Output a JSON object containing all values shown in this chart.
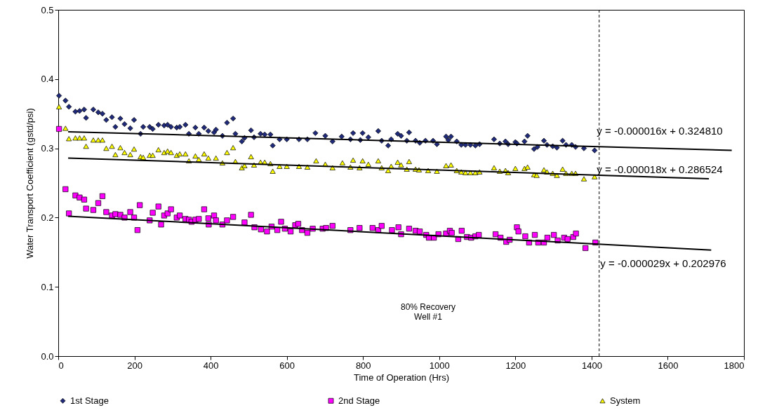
{
  "chart_data": {
    "type": "scatter",
    "xlabel": "Time of Operation (Hrs)",
    "ylabel": "Water Transport Coefficient (gstd/psi)",
    "xlim": [
      0,
      1800
    ],
    "xticks": [
      0,
      200,
      400,
      600,
      800,
      1000,
      1200,
      1400,
      1600,
      1800
    ],
    "ylim": [
      0,
      0.5
    ],
    "yticks": [
      {
        "value": 0,
        "label": "0.0"
      },
      0.1,
      0.2,
      0.3,
      0.4,
      0.5
    ],
    "grid": false,
    "legend": "bottom",
    "series": [
      {
        "name": "1st Stage",
        "marker": "diamond",
        "color": "#1f2a7a",
        "x": [
          2,
          19,
          28,
          45,
          56,
          68,
          73,
          92,
          105,
          116,
          126,
          141,
          150,
          163,
          174,
          189,
          199,
          216,
          223,
          240,
          248,
          263,
          278,
          287,
          296,
          311,
          319,
          334,
          343,
          360,
          369,
          383,
          394,
          409,
          414,
          431,
          443,
          459,
          465,
          482,
          489,
          506,
          514,
          531,
          542,
          557,
          563,
          581,
          600,
          632,
          654,
          675,
          701,
          720,
          744,
          767,
          774,
          793,
          799,
          814,
          840,
          849,
          866,
          874,
          891,
          900,
          915,
          921,
          938,
          949,
          964,
          984,
          994,
          1018,
          1024,
          1031,
          1046,
          1058,
          1069,
          1082,
          1095,
          1106,
          1144,
          1159,
          1174,
          1181,
          1200,
          1204,
          1224,
          1232,
          1249,
          1258,
          1275,
          1283,
          1298,
          1309,
          1324,
          1333,
          1348,
          1358,
          1380,
          1408
        ],
        "values": [
          0.376,
          0.369,
          0.36,
          0.353,
          0.354,
          0.356,
          0.344,
          0.356,
          0.352,
          0.35,
          0.341,
          0.345,
          0.331,
          0.343,
          0.335,
          0.329,
          0.341,
          0.321,
          0.331,
          0.331,
          0.328,
          0.334,
          0.333,
          0.334,
          0.331,
          0.33,
          0.331,
          0.334,
          0.321,
          0.33,
          0.321,
          0.33,
          0.325,
          0.323,
          0.327,
          0.318,
          0.337,
          0.343,
          0.321,
          0.31,
          0.315,
          0.326,
          0.316,
          0.321,
          0.32,
          0.32,
          0.304,
          0.313,
          0.313,
          0.313,
          0.313,
          0.322,
          0.318,
          0.31,
          0.317,
          0.313,
          0.322,
          0.312,
          0.322,
          0.316,
          0.325,
          0.311,
          0.304,
          0.313,
          0.321,
          0.318,
          0.311,
          0.323,
          0.311,
          0.308,
          0.311,
          0.311,
          0.306,
          0.317,
          0.312,
          0.317,
          0.31,
          0.305,
          0.305,
          0.305,
          0.304,
          0.306,
          0.313,
          0.307,
          0.31,
          0.306,
          0.309,
          0.307,
          0.31,
          0.318,
          0.299,
          0.302,
          0.311,
          0.305,
          0.303,
          0.301,
          0.311,
          0.305,
          0.305,
          0.302,
          0.3,
          0.297
        ]
      },
      {
        "name": "2nd Stage",
        "marker": "square",
        "color": "#ff00ff",
        "x": [
          2,
          19,
          28,
          45,
          56,
          68,
          73,
          92,
          105,
          116,
          126,
          141,
          150,
          163,
          174,
          189,
          199,
          208,
          214,
          240,
          248,
          263,
          270,
          278,
          287,
          296,
          311,
          319,
          334,
          343,
          350,
          360,
          369,
          383,
          394,
          395,
          409,
          414,
          431,
          443,
          459,
          489,
          506,
          515,
          532,
          548,
          560,
          575,
          585,
          595,
          610,
          622,
          630,
          640,
          654,
          668,
          694,
          703,
          720,
          767,
          791,
          825,
          840,
          849,
          876,
          893,
          900,
          921,
          938,
          949,
          966,
          973,
          986,
          998,
          1018,
          1028,
          1033,
          1050,
          1059,
          1073,
          1084,
          1095,
          1104,
          1148,
          1161,
          1176,
          1185,
          1204,
          1208,
          1226,
          1236,
          1251,
          1260,
          1275,
          1284,
          1301,
          1311,
          1328,
          1337,
          1352,
          1359,
          1384,
          1410
        ],
        "values": [
          0.328,
          0.241,
          0.206,
          0.232,
          0.229,
          0.226,
          0.213,
          0.211,
          0.221,
          0.231,
          0.208,
          0.203,
          0.205,
          0.204,
          0.2,
          0.208,
          0.2,
          0.182,
          0.218,
          0.196,
          0.207,
          0.216,
          0.19,
          0.203,
          0.206,
          0.212,
          0.2,
          0.203,
          0.198,
          0.197,
          0.194,
          0.197,
          0.198,
          0.212,
          0.199,
          0.19,
          0.203,
          0.196,
          0.19,
          0.196,
          0.201,
          0.193,
          0.204,
          0.186,
          0.183,
          0.18,
          0.187,
          0.182,
          0.194,
          0.184,
          0.18,
          0.189,
          0.191,
          0.182,
          0.178,
          0.184,
          0.184,
          0.185,
          0.188,
          0.182,
          0.185,
          0.185,
          0.182,
          0.188,
          0.182,
          0.186,
          0.176,
          0.184,
          0.181,
          0.18,
          0.175,
          0.171,
          0.171,
          0.176,
          0.177,
          0.181,
          0.178,
          0.169,
          0.181,
          0.172,
          0.171,
          0.173,
          0.175,
          0.176,
          0.171,
          0.165,
          0.168,
          0.186,
          0.18,
          0.173,
          0.164,
          0.175,
          0.164,
          0.164,
          0.171,
          0.175,
          0.167,
          0.171,
          0.169,
          0.172,
          0.177,
          0.156,
          0.164
        ]
      },
      {
        "name": "System",
        "marker": "triangle",
        "color": "#ffff00",
        "x": [
          2,
          19,
          28,
          45,
          56,
          68,
          73,
          92,
          105,
          116,
          126,
          141,
          150,
          163,
          174,
          189,
          199,
          216,
          223,
          240,
          248,
          263,
          278,
          287,
          296,
          311,
          319,
          334,
          343,
          360,
          369,
          383,
          394,
          414,
          431,
          443,
          459,
          465,
          482,
          489,
          506,
          514,
          531,
          542,
          557,
          563,
          581,
          600,
          632,
          654,
          677,
          701,
          720,
          746,
          767,
          774,
          791,
          799,
          814,
          840,
          849,
          866,
          874,
          891,
          900,
          915,
          921,
          938,
          947,
          971,
          994,
          1018,
          1031,
          1046,
          1058,
          1069,
          1082,
          1095,
          1106,
          1144,
          1159,
          1174,
          1181,
          1200,
          1224,
          1232,
          1249,
          1256,
          1275,
          1283,
          1298,
          1309,
          1324,
          1333,
          1348,
          1358,
          1380,
          1408
        ],
        "values": [
          0.36,
          0.329,
          0.314,
          0.315,
          0.315,
          0.315,
          0.303,
          0.312,
          0.312,
          0.312,
          0.3,
          0.303,
          0.291,
          0.301,
          0.294,
          0.291,
          0.299,
          0.288,
          0.287,
          0.29,
          0.29,
          0.298,
          0.294,
          0.296,
          0.294,
          0.29,
          0.292,
          0.292,
          0.282,
          0.289,
          0.284,
          0.292,
          0.286,
          0.286,
          0.279,
          0.294,
          0.301,
          0.281,
          0.272,
          0.275,
          0.288,
          0.276,
          0.28,
          0.28,
          0.278,
          0.267,
          0.274,
          0.274,
          0.274,
          0.273,
          0.282,
          0.277,
          0.272,
          0.279,
          0.273,
          0.283,
          0.272,
          0.282,
          0.277,
          0.282,
          0.272,
          0.268,
          0.274,
          0.28,
          0.276,
          0.27,
          0.281,
          0.27,
          0.269,
          0.268,
          0.267,
          0.275,
          0.276,
          0.268,
          0.266,
          0.265,
          0.265,
          0.265,
          0.266,
          0.272,
          0.267,
          0.268,
          0.265,
          0.271,
          0.271,
          0.273,
          0.262,
          0.261,
          0.269,
          0.266,
          0.264,
          0.261,
          0.27,
          0.264,
          0.264,
          0.264,
          0.256,
          0.259
        ]
      },
      {
        "type": "line",
        "color": "#000000",
        "x": [
          26,
          1768
        ],
        "values": [
          0.324,
          0.297
        ]
      },
      {
        "type": "line",
        "color": "#000000",
        "x": [
          26,
          1708
        ],
        "values": [
          0.286,
          0.256
        ]
      },
      {
        "type": "line",
        "color": "#000000",
        "x": [
          26,
          1714
        ],
        "values": [
          0.202,
          0.153
        ]
      }
    ],
    "ref_lines": [
      {
        "axis": "x",
        "value": 1420,
        "color": "#000000",
        "line_style": "dashed"
      }
    ],
    "annotations": [
      "y = -0.000016x + 0.324810",
      "y = -0.000018x + 0.286524",
      "y = -0.000029x + 0.202976",
      "80% Recovery\nWell #1"
    ]
  }
}
